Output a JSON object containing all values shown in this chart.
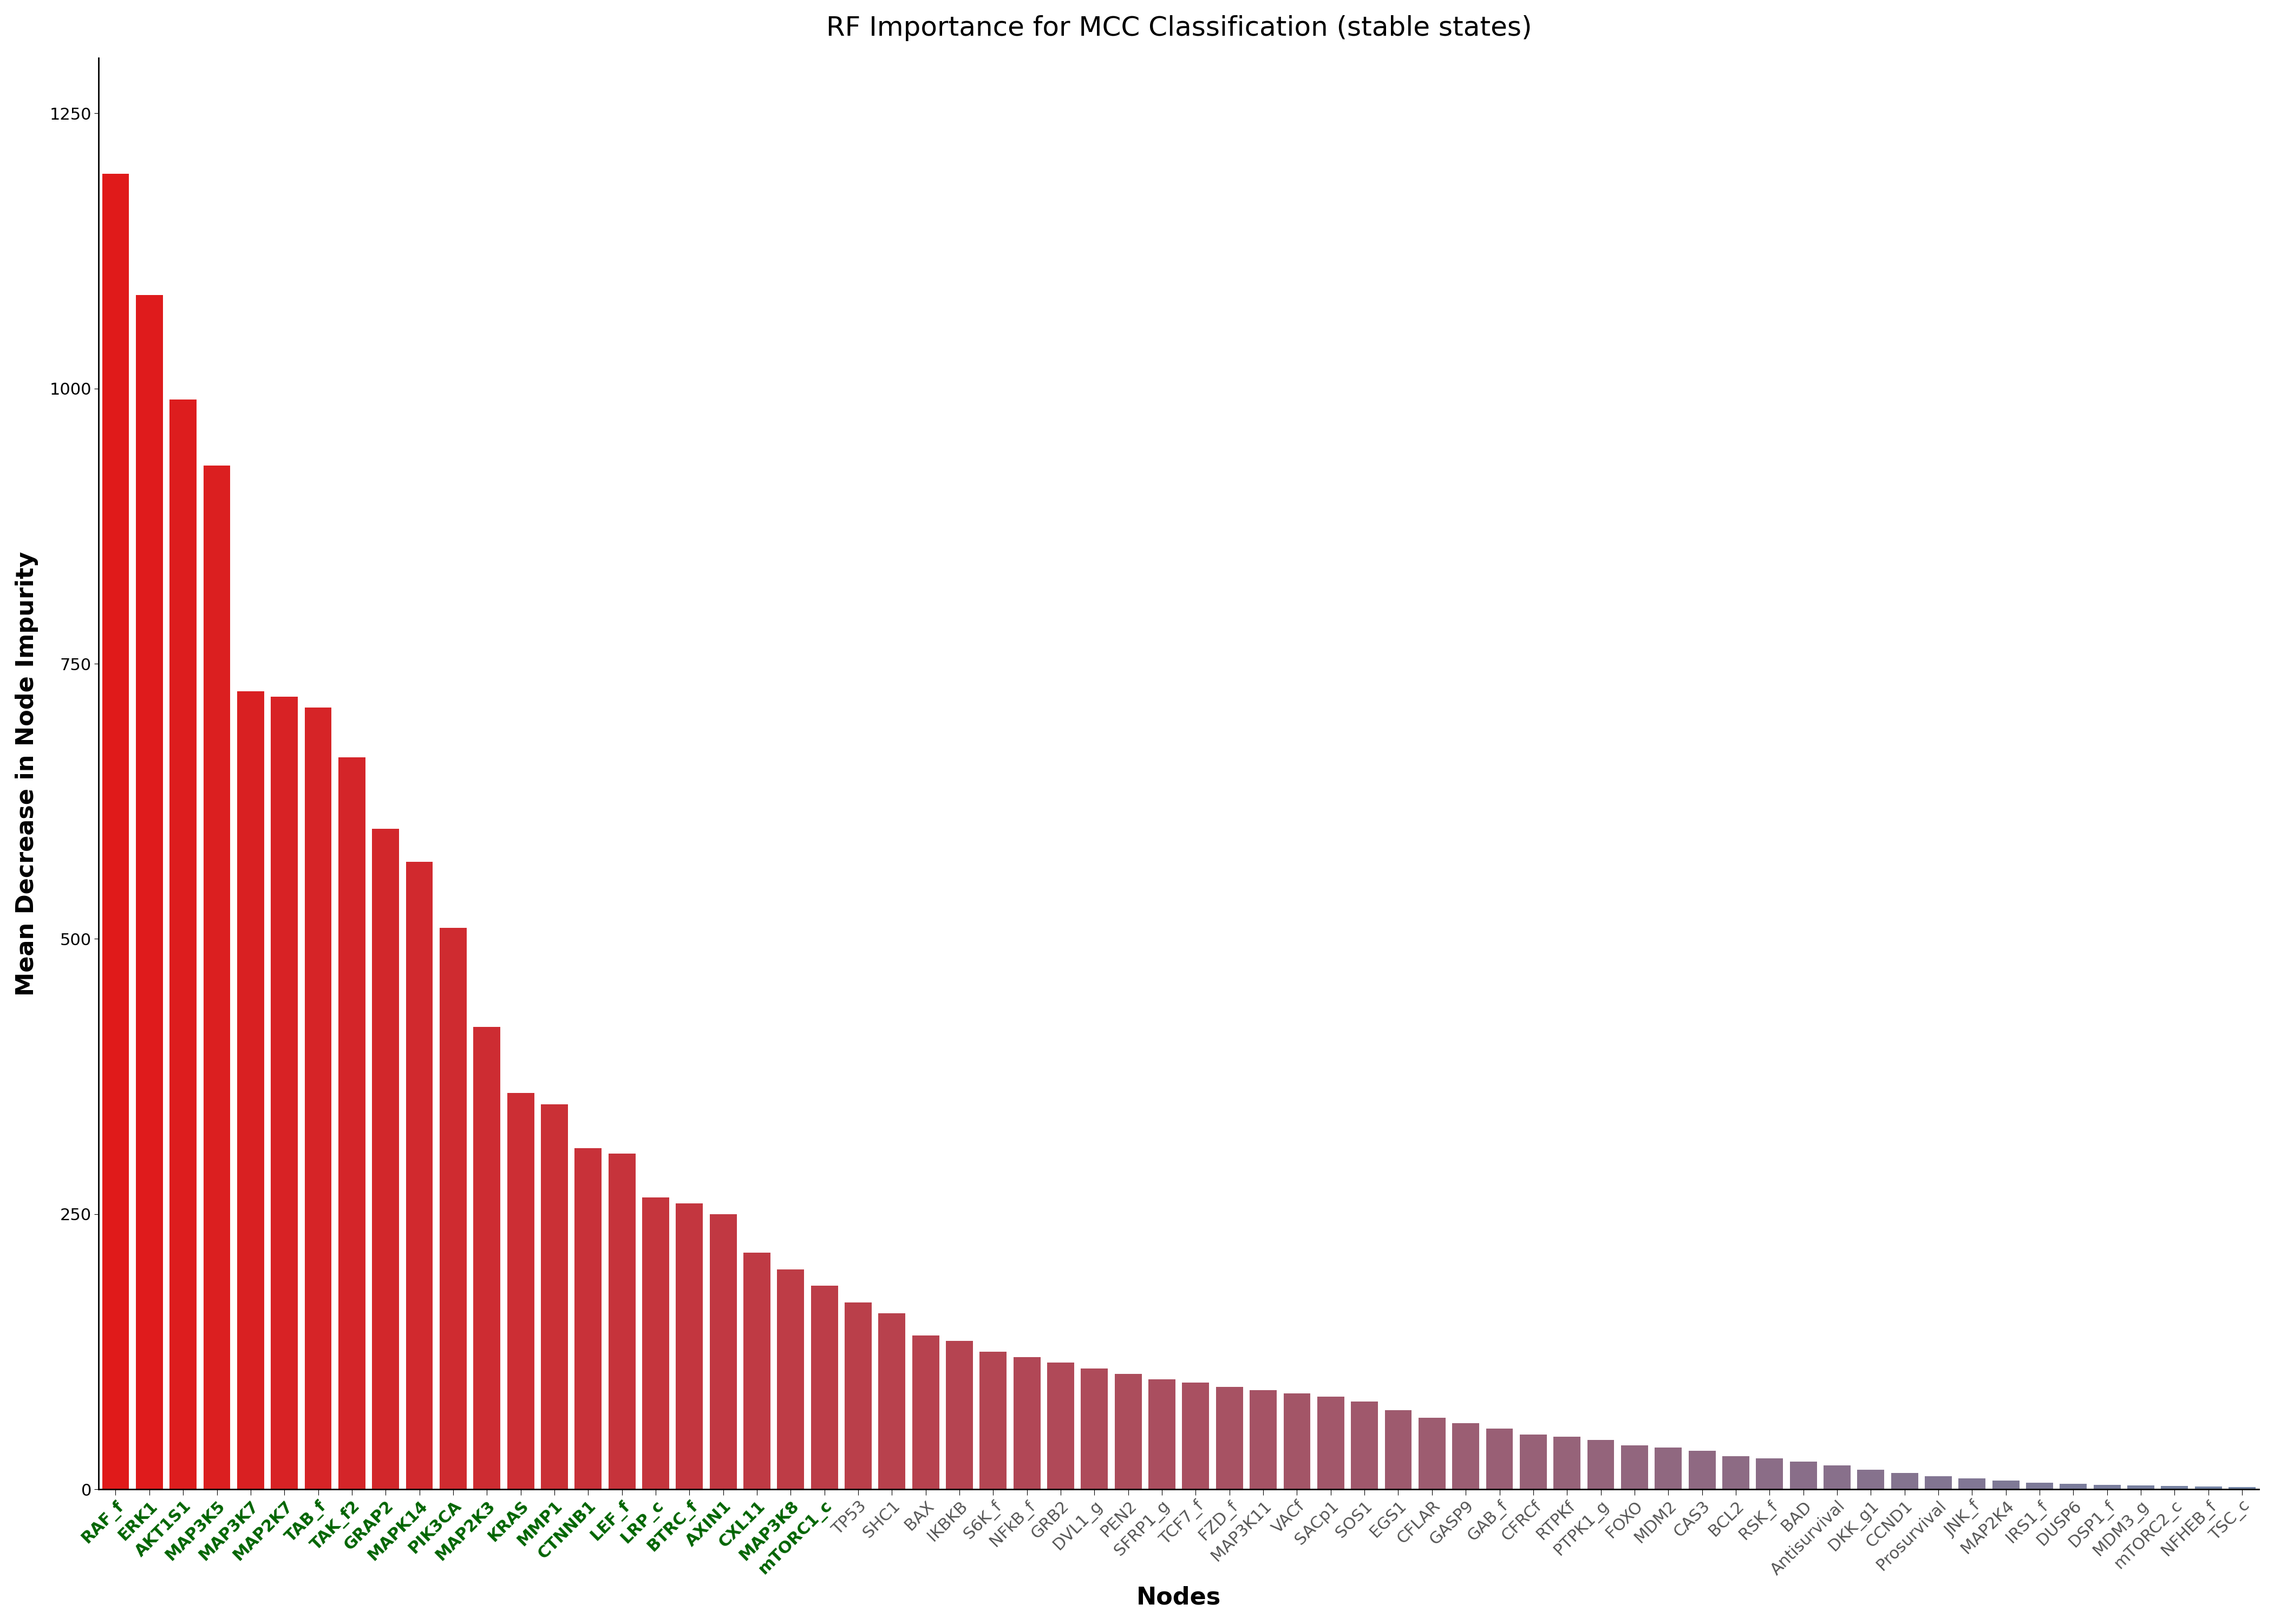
{
  "title": "RF Importance for MCC Classification (stable states)",
  "xlabel": "Nodes",
  "ylabel": "Mean Decrease in Node Impurity",
  "categories": [
    "RAF_f",
    "ERK1",
    "AKT1S1",
    "MAP3K5",
    "MAP3K7",
    "MAP2K7",
    "TAB_f",
    "TAK_f2",
    "GRAP2",
    "MAPK14",
    "PIK3CA",
    "MAP2K3",
    "KRAS",
    "MMP1",
    "CTNNB1",
    "LEF_f",
    "LRP_c",
    "BTRC_f",
    "AXIN1",
    "CXL11",
    "MAP3K8",
    "mTORC1_c",
    "TP53",
    "SHC1",
    "BAX",
    "IKBKB",
    "S6K_f",
    "NFkB_f",
    "GRB2",
    "DVL1_g",
    "PEN2",
    "SFRP1_g",
    "TCF7_f",
    "FZD_f",
    "MAP3K11",
    "VACf",
    "SACp1",
    "SOS1",
    "EGS1",
    "CFLAR",
    "GASP9",
    "GAB_f",
    "CFRCf",
    "RTPKf",
    "PTPK1_g",
    "FOXO",
    "MDM2",
    "CAS3",
    "BCL2",
    "RSK_f",
    "BAD",
    "Antisurvival",
    "DKK_g1",
    "CCND1",
    "Prosurvival",
    "JNK_f",
    "MAP2K4",
    "IRS1_f",
    "DUSP6",
    "DSP1_f",
    "MDM3_g",
    "mTORC2_c",
    "NFHEB_f",
    "TSC_c"
  ],
  "values": [
    1195,
    1085,
    990,
    930,
    725,
    720,
    710,
    665,
    600,
    570,
    510,
    420,
    360,
    350,
    310,
    305,
    265,
    260,
    250,
    215,
    200,
    185,
    170,
    160,
    140,
    135,
    125,
    120,
    115,
    110,
    105,
    100,
    97,
    93,
    90,
    87,
    84,
    80,
    72,
    65,
    60,
    55,
    50,
    48,
    45,
    40,
    38,
    35,
    30,
    28,
    25,
    22,
    18,
    15,
    12,
    10,
    8,
    6,
    5,
    4,
    3.5,
    3,
    2.5,
    2
  ],
  "green_label_count": 22,
  "ylim": [
    0,
    1300
  ],
  "yticks": [
    0,
    250,
    500,
    750,
    1000,
    1250
  ],
  "title_fontsize": 36,
  "axis_label_fontsize": 32,
  "tick_fontsize": 22,
  "green_color": "#006400",
  "gray_color": "#555555",
  "red_color_rgb": [
    0.88,
    0.1,
    0.1
  ],
  "blue_color_rgb": [
    0.45,
    0.52,
    0.65
  ]
}
